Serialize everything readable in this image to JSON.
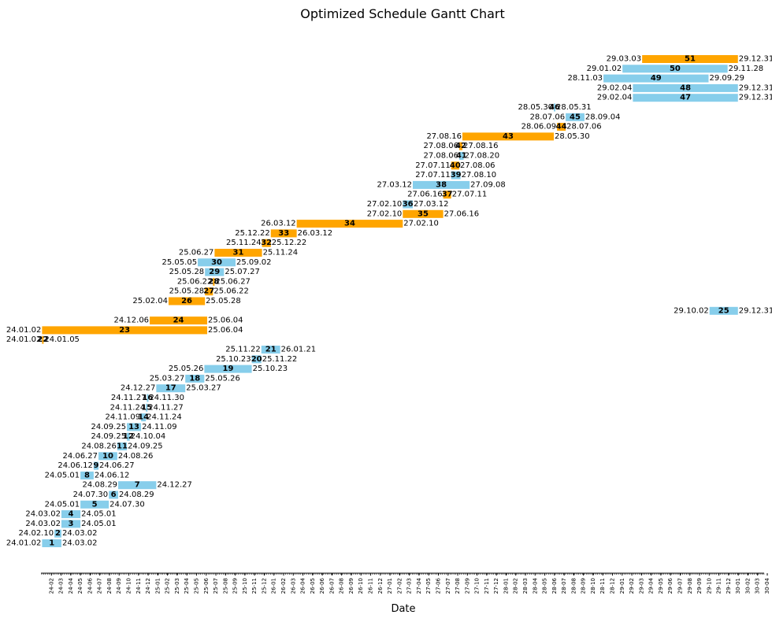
{
  "chart_data": {
    "type": "gantt",
    "title": "Optimized Schedule Gantt Chart",
    "xlabel": "Date",
    "ylabel": "",
    "colors": {
      "blue": "#87CEEB",
      "orange": "#FFA500"
    },
    "x_ticks": [
      "24-02",
      "24-03",
      "24-04",
      "24-05",
      "24-06",
      "24-07",
      "24-08",
      "24-09",
      "24-10",
      "24-11",
      "24-12",
      "25-01",
      "25-02",
      "25-03",
      "25-04",
      "25-05",
      "25-06",
      "25-07",
      "25-08",
      "25-09",
      "25-10",
      "25-11",
      "25-12",
      "26-01",
      "26-02",
      "26-03",
      "26-04",
      "26-05",
      "26-06",
      "26-07",
      "26-08",
      "26-09",
      "26-10",
      "26-11",
      "26-12",
      "27-01",
      "27-02",
      "27-03",
      "27-04",
      "27-05",
      "27-06",
      "27-07",
      "27-08",
      "27-09",
      "27-10",
      "27-11",
      "27-12",
      "28-01",
      "28-02",
      "28-03",
      "28-04",
      "28-05",
      "28-06",
      "28-07",
      "28-08",
      "28-09",
      "28-10",
      "28-11",
      "28-12",
      "29-01",
      "29-02",
      "29-03",
      "29-04",
      "29-05",
      "29-06",
      "29-07",
      "29-08",
      "29-09",
      "29-10",
      "29-11",
      "29-12",
      "30-01",
      "30-02",
      "30-03",
      "30-04"
    ],
    "tasks": [
      {
        "id": "1",
        "start": "24.01.02",
        "end": "24.03.02",
        "color": "blue"
      },
      {
        "id": "2",
        "start": "24.02.10",
        "end": "24.03.02",
        "color": "blue"
      },
      {
        "id": "3",
        "start": "24.03.02",
        "end": "24.05.01",
        "color": "blue"
      },
      {
        "id": "4",
        "start": "24.03.02",
        "end": "24.05.01",
        "color": "blue"
      },
      {
        "id": "5",
        "start": "24.05.01",
        "end": "24.07.30",
        "color": "blue"
      },
      {
        "id": "6",
        "start": "24.07.30",
        "end": "24.08.29",
        "color": "blue"
      },
      {
        "id": "7",
        "start": "24.08.29",
        "end": "24.12.27",
        "color": "blue"
      },
      {
        "id": "8",
        "start": "24.05.01",
        "end": "24.06.12",
        "color": "blue"
      },
      {
        "id": "9",
        "start": "24.06.12",
        "end": "24.06.27",
        "color": "blue"
      },
      {
        "id": "10",
        "start": "24.06.27",
        "end": "24.08.26",
        "color": "blue"
      },
      {
        "id": "11",
        "start": "24.08.26",
        "end": "24.09.25",
        "color": "blue"
      },
      {
        "id": "12",
        "start": "24.09.25",
        "end": "24.10.04",
        "color": "blue"
      },
      {
        "id": "13",
        "start": "24.09.25",
        "end": "24.11.09",
        "color": "blue"
      },
      {
        "id": "14",
        "start": "24.11.09",
        "end": "24.11.24",
        "color": "blue"
      },
      {
        "id": "15",
        "start": "24.11.24",
        "end": "24.11.27",
        "color": "blue"
      },
      {
        "id": "16",
        "start": "24.11.27",
        "end": "24.11.30",
        "color": "blue"
      },
      {
        "id": "17",
        "start": "24.12.27",
        "end": "25.03.27",
        "color": "blue"
      },
      {
        "id": "18",
        "start": "25.03.27",
        "end": "25.05.26",
        "color": "blue"
      },
      {
        "id": "19",
        "start": "25.05.26",
        "end": "25.10.23",
        "color": "blue"
      },
      {
        "id": "20",
        "start": "25.10.23",
        "end": "25.11.22",
        "color": "blue"
      },
      {
        "id": "21",
        "start": "25.11.22",
        "end": "26.01.21",
        "color": "blue"
      },
      {
        "id": "22",
        "start": "24.01.02",
        "end": "24.01.05",
        "color": "orange"
      },
      {
        "id": "23",
        "start": "24.01.02",
        "end": "25.06.04",
        "color": "orange"
      },
      {
        "id": "24",
        "start": "24.12.06",
        "end": "25.06.04",
        "color": "orange"
      },
      {
        "id": "25",
        "start": "29.10.02",
        "end": "29.12.31",
        "color": "blue"
      },
      {
        "id": "26",
        "start": "25.02.04",
        "end": "25.05.28",
        "color": "orange"
      },
      {
        "id": "27",
        "start": "25.05.28",
        "end": "25.06.22",
        "color": "orange"
      },
      {
        "id": "28",
        "start": "25.06.22",
        "end": "25.06.27",
        "color": "orange"
      },
      {
        "id": "29",
        "start": "25.05.28",
        "end": "25.07.27",
        "color": "blue"
      },
      {
        "id": "30",
        "start": "25.05.05",
        "end": "25.09.02",
        "color": "blue"
      },
      {
        "id": "31",
        "start": "25.06.27",
        "end": "25.11.24",
        "color": "orange"
      },
      {
        "id": "32",
        "start": "25.11.24",
        "end": "25.12.22",
        "color": "orange"
      },
      {
        "id": "33",
        "start": "25.12.22",
        "end": "26.03.12",
        "color": "orange"
      },
      {
        "id": "34",
        "start": "26.03.12",
        "end": "27.02.10",
        "color": "orange"
      },
      {
        "id": "35",
        "start": "27.02.10",
        "end": "27.06.16",
        "color": "orange"
      },
      {
        "id": "36",
        "start": "27.02.10",
        "end": "27.03.12",
        "color": "blue"
      },
      {
        "id": "37",
        "start": "27.06.16",
        "end": "27.07.11",
        "color": "orange"
      },
      {
        "id": "38",
        "start": "27.03.12",
        "end": "27.09.08",
        "color": "blue"
      },
      {
        "id": "39",
        "start": "27.07.11",
        "end": "27.08.10",
        "color": "blue"
      },
      {
        "id": "40",
        "start": "27.07.11",
        "end": "27.08.06",
        "color": "orange"
      },
      {
        "id": "41",
        "start": "27.08.06",
        "end": "27.08.20",
        "color": "blue"
      },
      {
        "id": "42",
        "start": "27.08.06",
        "end": "27.08.16",
        "color": "orange"
      },
      {
        "id": "43",
        "start": "27.08.16",
        "end": "28.05.30",
        "color": "orange"
      },
      {
        "id": "44",
        "start": "28.06.09",
        "end": "28.07.06",
        "color": "orange"
      },
      {
        "id": "45",
        "start": "28.07.06",
        "end": "28.09.04",
        "color": "blue"
      },
      {
        "id": "46",
        "start": "28.05.30",
        "end": "28.05.31",
        "color": "blue"
      },
      {
        "id": "47",
        "start": "29.02.04",
        "end": "29.12.31",
        "color": "blue"
      },
      {
        "id": "48",
        "start": "29.02.04",
        "end": "29.12.31",
        "color": "blue"
      },
      {
        "id": "49",
        "start": "28.11.03",
        "end": "29.09.29",
        "color": "blue"
      },
      {
        "id": "50",
        "start": "29.01.02",
        "end": "29.11.28",
        "color": "blue"
      },
      {
        "id": "51",
        "start": "29.03.03",
        "end": "29.12.31",
        "color": "orange"
      }
    ]
  }
}
